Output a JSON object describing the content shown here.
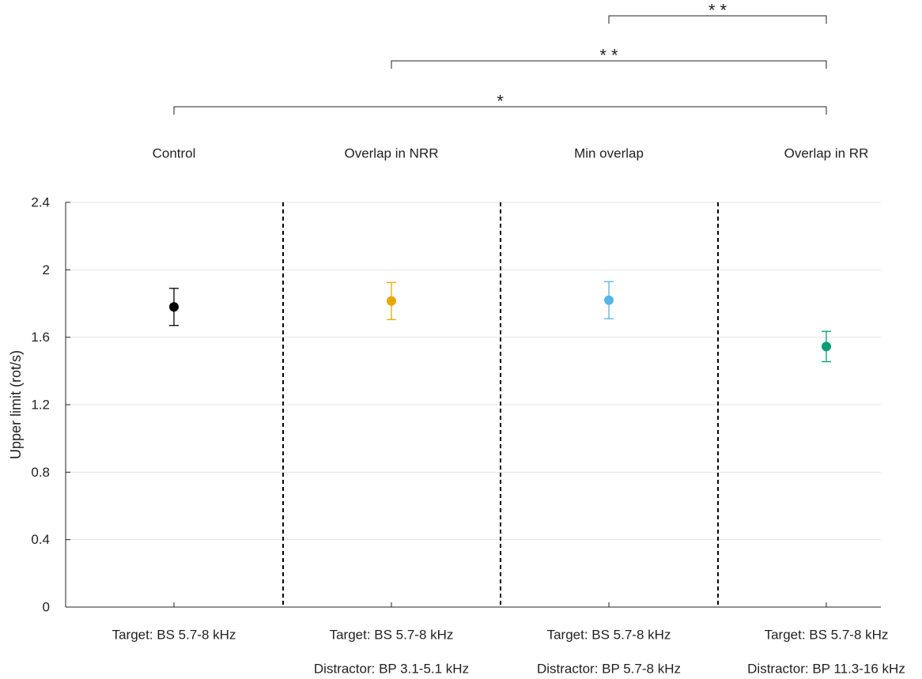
{
  "chart_data": {
    "type": "scatter",
    "ylabel": "Upper limit (rot/s)",
    "ylim": [
      0,
      2.4
    ],
    "yticks": [
      "0",
      "0.4",
      "0.8",
      "1.2",
      "1.6",
      "2",
      "2.4"
    ],
    "grid": "horizontal",
    "conditions": [
      {
        "name": "Control",
        "target": "Target: BS 5.7-8 kHz",
        "distractor": "",
        "value": 1.78,
        "err_low": 1.67,
        "err_high": 1.89,
        "color": "#000000"
      },
      {
        "name": "Overlap in NRR",
        "target": "Target: BS 5.7-8 kHz",
        "distractor": "Distractor: BP 3.1-5.1 kHz",
        "value": 1.815,
        "err_low": 1.705,
        "err_high": 1.925,
        "color": "#E6A800"
      },
      {
        "name": "Min overlap",
        "target": "Target: BS 5.7-8 kHz",
        "distractor": "Distractor: BP 5.7-8 kHz",
        "value": 1.82,
        "err_low": 1.71,
        "err_high": 1.93,
        "color": "#56B4E9"
      },
      {
        "name": "Overlap in RR",
        "target": "Target: BS 5.7-8 kHz",
        "distractor": "Distractor: BP 11.3-16 kHz",
        "value": 1.545,
        "err_low": 1.455,
        "err_high": 1.635,
        "color": "#009E73"
      }
    ],
    "significance": [
      {
        "from": 2,
        "to": 3,
        "label": "* *"
      },
      {
        "from": 1,
        "to": 3,
        "label": "* *"
      },
      {
        "from": 0,
        "to": 3,
        "label": "*"
      }
    ]
  }
}
